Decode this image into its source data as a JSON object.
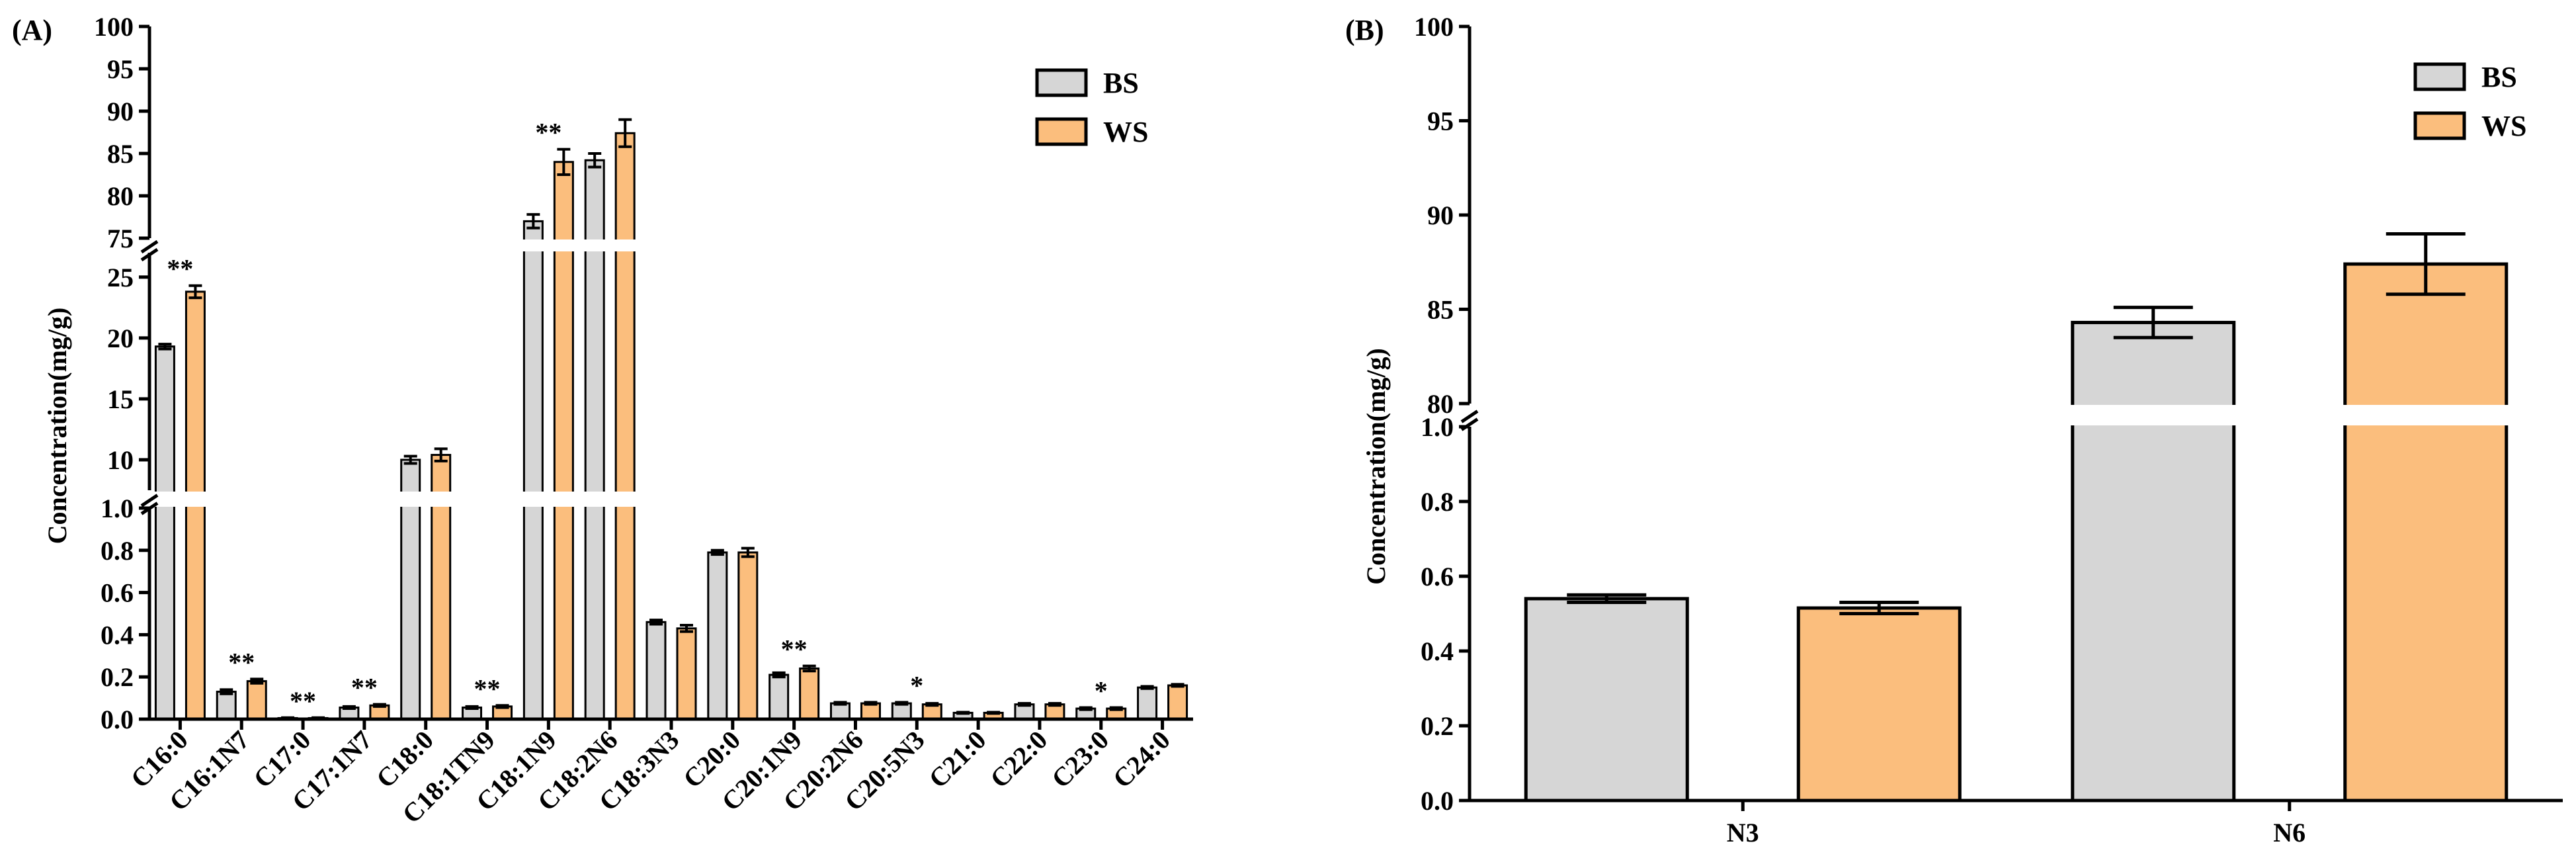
{
  "colors": {
    "BS": "#d6d6d6",
    "WS": "#fbbe7d",
    "stroke": "#000000"
  },
  "chart_data": [
    {
      "panel": "(A)",
      "type": "bar",
      "ylabel": "Concentration(mg/g)",
      "broken_axis": {
        "segments": [
          {
            "range": [
              0,
              1.0
            ],
            "ticks": [
              0.0,
              0.2,
              0.4,
              0.6,
              0.8,
              1.0
            ],
            "tick_labels": [
              "0.0",
              "0.2",
              "0.4",
              "0.6",
              "0.8",
              "1.0"
            ]
          },
          {
            "range": [
              7.5,
              27
            ],
            "ticks": [
              10,
              15,
              20,
              25
            ],
            "tick_labels": [
              "10",
              "15",
              "20",
              "25"
            ]
          },
          {
            "range": [
              75,
              100
            ],
            "ticks": [
              75,
              80,
              85,
              90,
              95,
              100
            ],
            "tick_labels": [
              "75",
              "80",
              "85",
              "90",
              "95",
              "100"
            ]
          }
        ]
      },
      "categories": [
        "C16:0",
        "C16:1N7",
        "C17:0",
        "C17:1N7",
        "C18:0",
        "C18:1TN9",
        "C18:1N9",
        "C18:2N6",
        "C18:3N3",
        "C20:0",
        "C20:1N9",
        "C20:2N6",
        "C20:5N3",
        "C21:0",
        "C22:0",
        "C23:0",
        "C24:0"
      ],
      "series": [
        {
          "name": "BS",
          "values": [
            19.3,
            0.13,
            0.005,
            0.055,
            10.0,
            0.055,
            77.0,
            84.2,
            0.46,
            0.79,
            0.21,
            0.075,
            0.075,
            0.03,
            0.07,
            0.05,
            0.15
          ],
          "errors": [
            0.2,
            0.01,
            0.002,
            0.005,
            0.3,
            0.005,
            0.8,
            0.8,
            0.01,
            0.01,
            0.01,
            0.005,
            0.005,
            0.003,
            0.005,
            0.005,
            0.005
          ]
        },
        {
          "name": "WS",
          "values": [
            23.8,
            0.18,
            0.005,
            0.065,
            10.4,
            0.06,
            84.0,
            87.4,
            0.43,
            0.79,
            0.24,
            0.075,
            0.07,
            0.03,
            0.07,
            0.05,
            0.16
          ],
          "errors": [
            0.5,
            0.01,
            0.002,
            0.005,
            0.5,
            0.005,
            1.5,
            1.6,
            0.015,
            0.02,
            0.012,
            0.005,
            0.005,
            0.003,
            0.005,
            0.005,
            0.005
          ]
        }
      ],
      "significance": [
        "**",
        "**",
        "**",
        "**",
        "",
        "**",
        "**",
        "",
        "",
        "",
        "**",
        "",
        "*",
        "",
        "",
        "*",
        ""
      ],
      "legend": [
        "BS",
        "WS"
      ]
    },
    {
      "panel": "(B)",
      "type": "bar",
      "ylabel": "Concentration(mg/g)",
      "broken_axis": {
        "segments": [
          {
            "range": [
              0,
              1.0
            ],
            "ticks": [
              0.0,
              0.2,
              0.4,
              0.6,
              0.8,
              1.0
            ],
            "tick_labels": [
              "0.0",
              "0.2",
              "0.4",
              "0.6",
              "0.8",
              "1.0"
            ]
          },
          {
            "range": [
              80,
              100
            ],
            "ticks": [
              80,
              85,
              90,
              95,
              100
            ],
            "tick_labels": [
              "80",
              "85",
              "90",
              "95",
              "100"
            ]
          }
        ]
      },
      "categories": [
        "N3",
        "N6"
      ],
      "series": [
        {
          "name": "BS",
          "values": [
            0.54,
            84.3
          ],
          "errors": [
            0.01,
            0.8
          ]
        },
        {
          "name": "WS",
          "values": [
            0.515,
            87.4
          ],
          "errors": [
            0.015,
            1.6
          ]
        }
      ],
      "legend": [
        "BS",
        "WS"
      ]
    }
  ]
}
